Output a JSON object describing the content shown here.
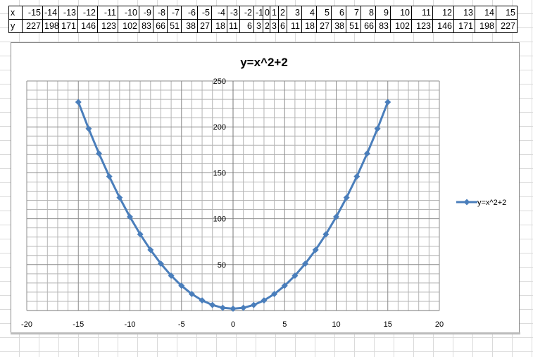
{
  "table": {
    "row_labels": [
      "x",
      "y"
    ],
    "x": [
      -15,
      -14,
      -13,
      -12,
      -11,
      -10,
      -9,
      -8,
      -7,
      -6,
      -5,
      -4,
      -3,
      -2,
      -1,
      0,
      1,
      2,
      3,
      4,
      5,
      6,
      7,
      8,
      9,
      10,
      11,
      12,
      13,
      14,
      15
    ],
    "y": [
      227,
      198,
      171,
      146,
      123,
      102,
      83,
      66,
      51,
      38,
      27,
      18,
      11,
      6,
      3,
      2,
      3,
      6,
      11,
      18,
      27,
      38,
      51,
      66,
      83,
      102,
      123,
      146,
      171,
      198,
      227
    ]
  },
  "chart_data": {
    "type": "scatter",
    "title": "y=x^2+2",
    "xlabel": "",
    "ylabel": "",
    "xlim": [
      -20,
      20
    ],
    "ylim": [
      0,
      250
    ],
    "xticks": [
      -20,
      -15,
      -10,
      -5,
      0,
      5,
      10,
      15,
      20
    ],
    "yticks": [
      50,
      100,
      150,
      200,
      250
    ],
    "grid": true,
    "legend": "right",
    "colors": {
      "series": "#4a7ebb",
      "major_grid": "#8c8c8c",
      "minor_grid": "#b4b4b4"
    },
    "series": [
      {
        "name": "y=x^2+2",
        "x": [
          -15,
          -14,
          -13,
          -12,
          -11,
          -10,
          -9,
          -8,
          -7,
          -6,
          -5,
          -4,
          -3,
          -2,
          -1,
          0,
          1,
          2,
          3,
          4,
          5,
          6,
          7,
          8,
          9,
          10,
          11,
          12,
          13,
          14,
          15
        ],
        "y": [
          227,
          198,
          171,
          146,
          123,
          102,
          83,
          66,
          51,
          38,
          27,
          18,
          11,
          6,
          3,
          2,
          3,
          6,
          11,
          18,
          27,
          38,
          51,
          66,
          83,
          102,
          123,
          146,
          171,
          198,
          227
        ]
      }
    ]
  }
}
